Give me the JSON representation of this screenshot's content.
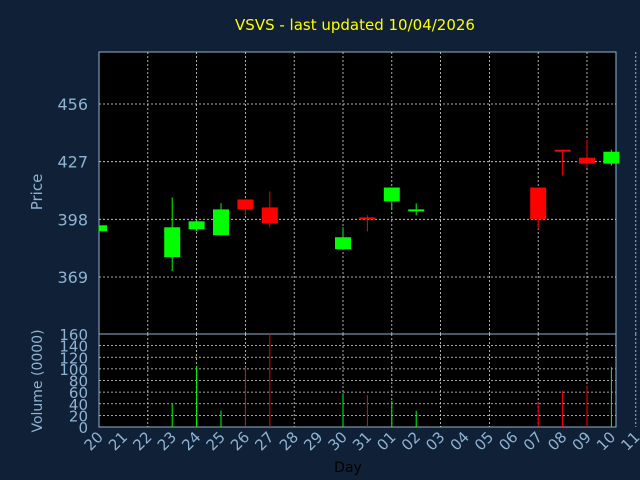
{
  "chart_data": {
    "type": "candlestick",
    "title": "VSVS - last updated 10/04/2026",
    "xlabel": "Day",
    "price_panel": {
      "ylabel": "Price",
      "yticks": [
        369,
        398,
        427,
        456
      ]
    },
    "volume_panel": {
      "ylabel": "Volume (0000)",
      "ylim": [
        0,
        160
      ],
      "yticks": [
        0,
        20,
        40,
        60,
        80,
        100,
        120,
        140,
        160
      ]
    },
    "x_labels": [
      "20",
      "21",
      "22",
      "23",
      "24",
      "25",
      "26",
      "27",
      "28",
      "29",
      "30",
      "31",
      "01",
      "02",
      "03",
      "04",
      "05",
      "06",
      "07",
      "08",
      "09",
      "10",
      "11"
    ],
    "grid": true,
    "colors": {
      "background": "#102036",
      "plot_bg": "#000000",
      "title": "#ffff00",
      "axis_label": "#8fb3d3",
      "grid": "#d8d8d8",
      "up": "#00ff00",
      "down": "#ff0000"
    },
    "candles": [
      {
        "day": "20",
        "open": 392,
        "high": 395,
        "low": 392,
        "close": 395,
        "volume": 0
      },
      {
        "day": "23",
        "open": 379,
        "high": 409,
        "low": 372,
        "close": 394,
        "volume": 40
      },
      {
        "day": "24",
        "open": 393,
        "high": 398,
        "low": 392,
        "close": 397,
        "volume": 105
      },
      {
        "day": "25",
        "open": 390,
        "high": 406,
        "low": 390,
        "close": 403,
        "volume": 28
      },
      {
        "day": "26",
        "open": 408,
        "high": 408,
        "low": 400,
        "close": 403,
        "volume": 103
      },
      {
        "day": "27",
        "open": 404,
        "high": 412,
        "low": 394,
        "close": 396,
        "volume": 160
      },
      {
        "day": "30",
        "open": 383,
        "high": 394,
        "low": 383,
        "close": 389,
        "volume": 58
      },
      {
        "day": "31",
        "open": 399,
        "high": 400,
        "low": 392,
        "close": 398,
        "volume": 55
      },
      {
        "day": "01",
        "open": 407,
        "high": 414,
        "low": 403,
        "close": 414,
        "volume": 45
      },
      {
        "day": "02",
        "open": 403,
        "high": 406,
        "low": 400,
        "close": 403,
        "volume": 28
      },
      {
        "day": "07",
        "open": 414,
        "high": 414,
        "low": 393,
        "close": 398,
        "volume": 42
      },
      {
        "day": "08",
        "open": 433,
        "high": 433,
        "low": 420,
        "close": 432,
        "volume": 62
      },
      {
        "day": "09",
        "open": 429,
        "high": 438,
        "low": 424,
        "close": 426,
        "volume": 70
      },
      {
        "day": "10",
        "open": 426,
        "high": 433,
        "low": 425,
        "close": 432,
        "volume": 103
      }
    ]
  }
}
